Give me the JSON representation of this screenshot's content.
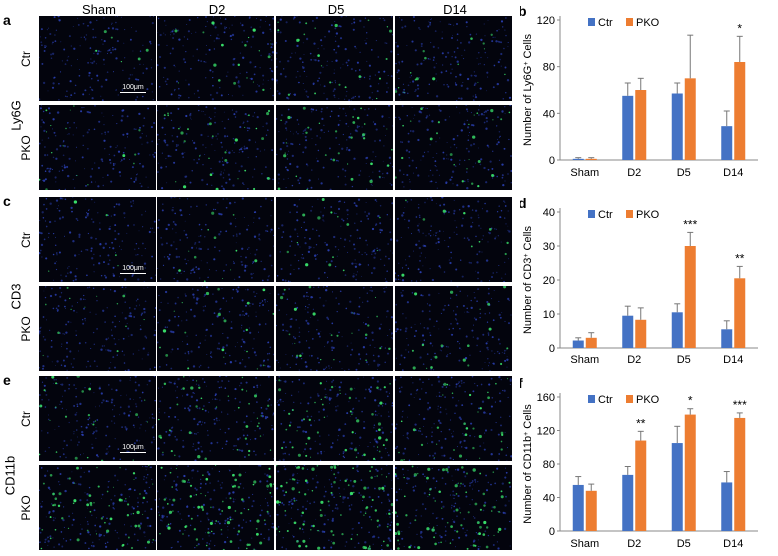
{
  "figure": {
    "column_headers": [
      "Sham",
      "D2",
      "D5",
      "D14"
    ],
    "row_labels": [
      "Ctr",
      "PKO"
    ],
    "scale_bar_label": "100μm",
    "sections": [
      {
        "letter_images": "a",
        "letter_chart": "b",
        "marker": "Ly6G"
      },
      {
        "letter_images": "c",
        "letter_chart": "d",
        "marker": "CD3"
      },
      {
        "letter_images": "e",
        "letter_chart": "f",
        "marker": "CD11b"
      }
    ]
  },
  "colors": {
    "ctr": "#4472C4",
    "pko": "#ED7D31",
    "nuclei": "#2a3fb0",
    "marker": "#39e06a"
  },
  "chart_data": [
    {
      "type": "bar",
      "panel": "b",
      "ylabel_prefix": "Number of Ly6G",
      "ylabel_sup": "+",
      "ylabel_suffix": " Cells",
      "categories": [
        "Sham",
        "D2",
        "D5",
        "D14"
      ],
      "legend": [
        "Ctr",
        "PKO"
      ],
      "legend_position": "top",
      "ylim": [
        0,
        120
      ],
      "yticks": [
        "0",
        "40",
        "80",
        "120"
      ],
      "ytick_values": [
        0,
        40,
        80,
        120
      ],
      "series": [
        {
          "name": "Ctr",
          "values": [
            1,
            55,
            57,
            29
          ],
          "errors": [
            1,
            11,
            9,
            13
          ]
        },
        {
          "name": "PKO",
          "values": [
            1,
            60,
            70,
            84
          ],
          "errors": [
            1,
            10,
            37,
            22
          ]
        }
      ],
      "significance": [
        "",
        "",
        "",
        "*"
      ]
    },
    {
      "type": "bar",
      "panel": "d",
      "ylabel_prefix": "Number of CD3",
      "ylabel_sup": "+",
      "ylabel_suffix": " Cells",
      "categories": [
        "Sham",
        "D2",
        "D5",
        "D14"
      ],
      "legend": [
        "Ctr",
        "PKO"
      ],
      "legend_position": "top",
      "ylim": [
        0,
        40
      ],
      "yticks": [
        "0",
        "10",
        "20",
        "30",
        "40"
      ],
      "ytick_values": [
        0,
        10,
        20,
        30,
        40
      ],
      "series": [
        {
          "name": "Ctr",
          "values": [
            2.2,
            9.5,
            10.5,
            5.5
          ],
          "errors": [
            0.8,
            2.8,
            2.5,
            2.5
          ]
        },
        {
          "name": "PKO",
          "values": [
            3.0,
            8.3,
            30,
            20.5
          ],
          "errors": [
            1.5,
            3.5,
            4,
            3.5
          ]
        }
      ],
      "significance": [
        "",
        "",
        "***",
        "**"
      ]
    },
    {
      "type": "bar",
      "panel": "f",
      "ylabel_prefix": "Number of CD11b",
      "ylabel_sup": "+",
      "ylabel_suffix": " Cells",
      "categories": [
        "Sham",
        "D2",
        "D5",
        "D14"
      ],
      "legend": [
        "Ctr",
        "PKO"
      ],
      "legend_position": "top",
      "ylim": [
        0,
        160
      ],
      "yticks": [
        "0",
        "40",
        "80",
        "120",
        "160"
      ],
      "ytick_values": [
        0,
        40,
        80,
        120,
        160
      ],
      "series": [
        {
          "name": "Ctr",
          "values": [
            55,
            67,
            105,
            58
          ],
          "errors": [
            10,
            10,
            20,
            13
          ]
        },
        {
          "name": "PKO",
          "values": [
            48,
            108,
            139,
            135
          ],
          "errors": [
            8,
            11,
            7,
            6
          ]
        }
      ],
      "significance": [
        "",
        "**",
        "*",
        "***"
      ]
    }
  ]
}
